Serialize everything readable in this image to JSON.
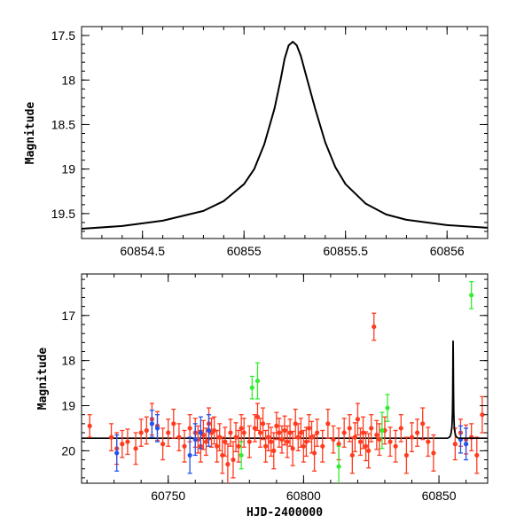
{
  "chart_data": [
    {
      "type": "line",
      "title": "",
      "xlabel": "",
      "ylabel": "Magnitude",
      "xlim": [
        60854.2,
        60856.2
      ],
      "ylim": [
        19.78,
        17.4
      ],
      "y_inverted": true,
      "x_ticks": [
        60854.5,
        60855,
        60855.5,
        60856
      ],
      "x_tick_labels": [
        "60854.5",
        "60855",
        "60855.5",
        "60856"
      ],
      "y_ticks": [
        17.5,
        18,
        18.5,
        19,
        19.5
      ],
      "y_tick_labels": [
        "17.5",
        "18",
        "18.5",
        "19",
        "19.5"
      ],
      "grid": false,
      "series": [
        {
          "color": "#000000",
          "x": [
            60854.2,
            60854.4,
            60854.6,
            60854.8,
            60854.9,
            60855.0,
            60855.05,
            60855.1,
            60855.15,
            60855.18,
            60855.2,
            60855.22,
            60855.24,
            60855.26,
            60855.28,
            60855.3,
            60855.35,
            60855.4,
            60855.45,
            60855.5,
            60855.6,
            60855.7,
            60855.8,
            60856.0,
            60856.2
          ],
          "y": [
            19.67,
            19.64,
            19.58,
            19.47,
            19.36,
            19.17,
            19.0,
            18.72,
            18.32,
            18.0,
            17.76,
            17.61,
            17.57,
            17.61,
            17.73,
            17.9,
            18.32,
            18.7,
            18.98,
            19.17,
            19.39,
            19.51,
            19.57,
            19.63,
            19.66
          ]
        }
      ]
    },
    {
      "type": "scatter",
      "title": "",
      "xlabel": "HJD-2400000",
      "ylabel": "Magnitude",
      "xlim": [
        60718,
        60868
      ],
      "ylim": [
        20.72,
        16.08
      ],
      "y_inverted": true,
      "x_ticks": [
        60750,
        60800,
        60850
      ],
      "x_tick_labels": [
        "60750",
        "60800",
        "60850"
      ],
      "y_ticks": [
        17,
        18,
        19,
        20
      ],
      "y_tick_labels": [
        "17",
        "18",
        "19",
        "20"
      ],
      "grid": false,
      "model_curve": {
        "color": "#000000",
        "baseline": 19.72,
        "x": [
          60853.3,
          60853.6,
          60853.8,
          60854.0,
          60854.2,
          60854.5,
          60854.8,
          60855.0,
          60855.1,
          60855.2,
          60855.24,
          60855.3,
          60855.4,
          60855.5,
          60855.7,
          60856.0,
          60856.3,
          60856.6,
          60857.0
        ],
        "y": [
          19.72,
          19.71,
          19.7,
          19.69,
          19.67,
          19.61,
          19.47,
          19.17,
          18.72,
          17.76,
          17.57,
          17.9,
          18.7,
          19.17,
          19.51,
          19.63,
          19.68,
          19.7,
          19.72
        ]
      },
      "series": [
        {
          "color": "#ff3b1f",
          "x": [
            60721,
            60729,
            60731,
            60733,
            60735,
            60738,
            60740,
            60742,
            60744,
            60746,
            60748,
            60750,
            60752,
            60754,
            60756,
            60758,
            60760,
            60761,
            60762,
            60763,
            60764,
            60765,
            60766,
            60767,
            60768,
            60769,
            60770,
            60771,
            60772,
            60773,
            60774,
            60775,
            60776,
            60777,
            60778,
            60780,
            60782,
            60783,
            60784,
            60785,
            60786,
            60787,
            60788,
            60789,
            60790,
            60791,
            60792,
            60793,
            60794,
            60795,
            60796,
            60797,
            60798,
            60799,
            60800,
            60801,
            60802,
            60803,
            60804,
            60805,
            60807,
            60809,
            60811,
            60813,
            60815,
            60817,
            60818,
            60819,
            60820,
            60821,
            60822,
            60823,
            60824,
            60825,
            60826,
            60827,
            60828,
            60830,
            60832,
            60834,
            60836,
            60838,
            60840,
            60842,
            60844,
            60846,
            60848,
            60856,
            60858,
            60860,
            60862,
            60864,
            60866
          ],
          "y": [
            19.45,
            19.7,
            19.95,
            19.85,
            19.8,
            19.95,
            19.6,
            19.55,
            19.3,
            19.45,
            19.85,
            19.6,
            19.4,
            19.7,
            19.9,
            19.5,
            19.6,
            19.75,
            19.9,
            19.65,
            19.8,
            19.4,
            19.6,
            19.55,
            19.9,
            19.7,
            20.1,
            19.8,
            20.3,
            19.6,
            20.2,
            19.7,
            19.9,
            19.5,
            19.6,
            19.8,
            19.5,
            19.25,
            19.6,
            19.4,
            19.9,
            19.7,
            19.8,
            20.0,
            19.45,
            19.6,
            19.75,
            19.55,
            19.8,
            19.6,
            19.95,
            19.4,
            19.7,
            19.6,
            19.9,
            19.8,
            19.5,
            19.7,
            20.05,
            19.6,
            19.9,
            19.4,
            19.75,
            19.85,
            19.6,
            19.5,
            20.1,
            19.7,
            19.3,
            19.8,
            19.6,
            19.9,
            20.0,
            19.5,
            17.25,
            19.65,
            19.75,
            19.55,
            19.8,
            19.9,
            19.5,
            20.1,
            19.7,
            19.6,
            19.4,
            19.8,
            20.05,
            19.85,
            19.6,
            19.75,
            19.7,
            20.1,
            19.2
          ],
          "yerr": [
            0.25,
            0.3,
            0.35,
            0.3,
            0.28,
            0.35,
            0.3,
            0.3,
            0.35,
            0.32,
            0.35,
            0.3,
            0.32,
            0.3,
            0.35,
            0.3,
            0.32,
            0.3,
            0.35,
            0.32,
            0.3,
            0.35,
            0.32,
            0.3,
            0.35,
            0.3,
            0.4,
            0.32,
            0.45,
            0.3,
            0.4,
            0.32,
            0.35,
            0.3,
            0.32,
            0.35,
            0.3,
            0.3,
            0.32,
            0.35,
            0.35,
            0.3,
            0.32,
            0.4,
            0.3,
            0.32,
            0.3,
            0.32,
            0.35,
            0.3,
            0.38,
            0.32,
            0.3,
            0.32,
            0.35,
            0.32,
            0.3,
            0.35,
            0.4,
            0.3,
            0.35,
            0.32,
            0.3,
            0.35,
            0.32,
            0.3,
            0.4,
            0.32,
            0.35,
            0.3,
            0.35,
            0.32,
            0.38,
            0.3,
            0.3,
            0.32,
            0.35,
            0.3,
            0.32,
            0.35,
            0.3,
            0.4,
            0.32,
            0.3,
            0.35,
            0.32,
            0.4,
            0.35,
            0.3,
            0.32,
            0.3,
            0.4,
            0.4
          ]
        },
        {
          "color": "#33ee33",
          "x": [
            60777,
            60781,
            60783,
            60813,
            60829,
            60831,
            60862
          ],
          "y": [
            20.1,
            18.6,
            18.45,
            20.35,
            19.55,
            19.05,
            16.55
          ],
          "yerr": [
            0.3,
            0.25,
            0.4,
            0.45,
            0.4,
            0.3,
            0.3
          ]
        },
        {
          "color": "#2255ee",
          "x": [
            60731,
            60744,
            60746,
            60758,
            60760,
            60762,
            60765,
            60858,
            60860
          ],
          "y": [
            20.05,
            19.4,
            19.5,
            20.1,
            19.75,
            19.6,
            19.55,
            19.75,
            19.85
          ],
          "yerr": [
            0.4,
            0.3,
            0.3,
            0.4,
            0.35,
            0.35,
            0.35,
            0.3,
            0.35
          ]
        }
      ]
    }
  ]
}
